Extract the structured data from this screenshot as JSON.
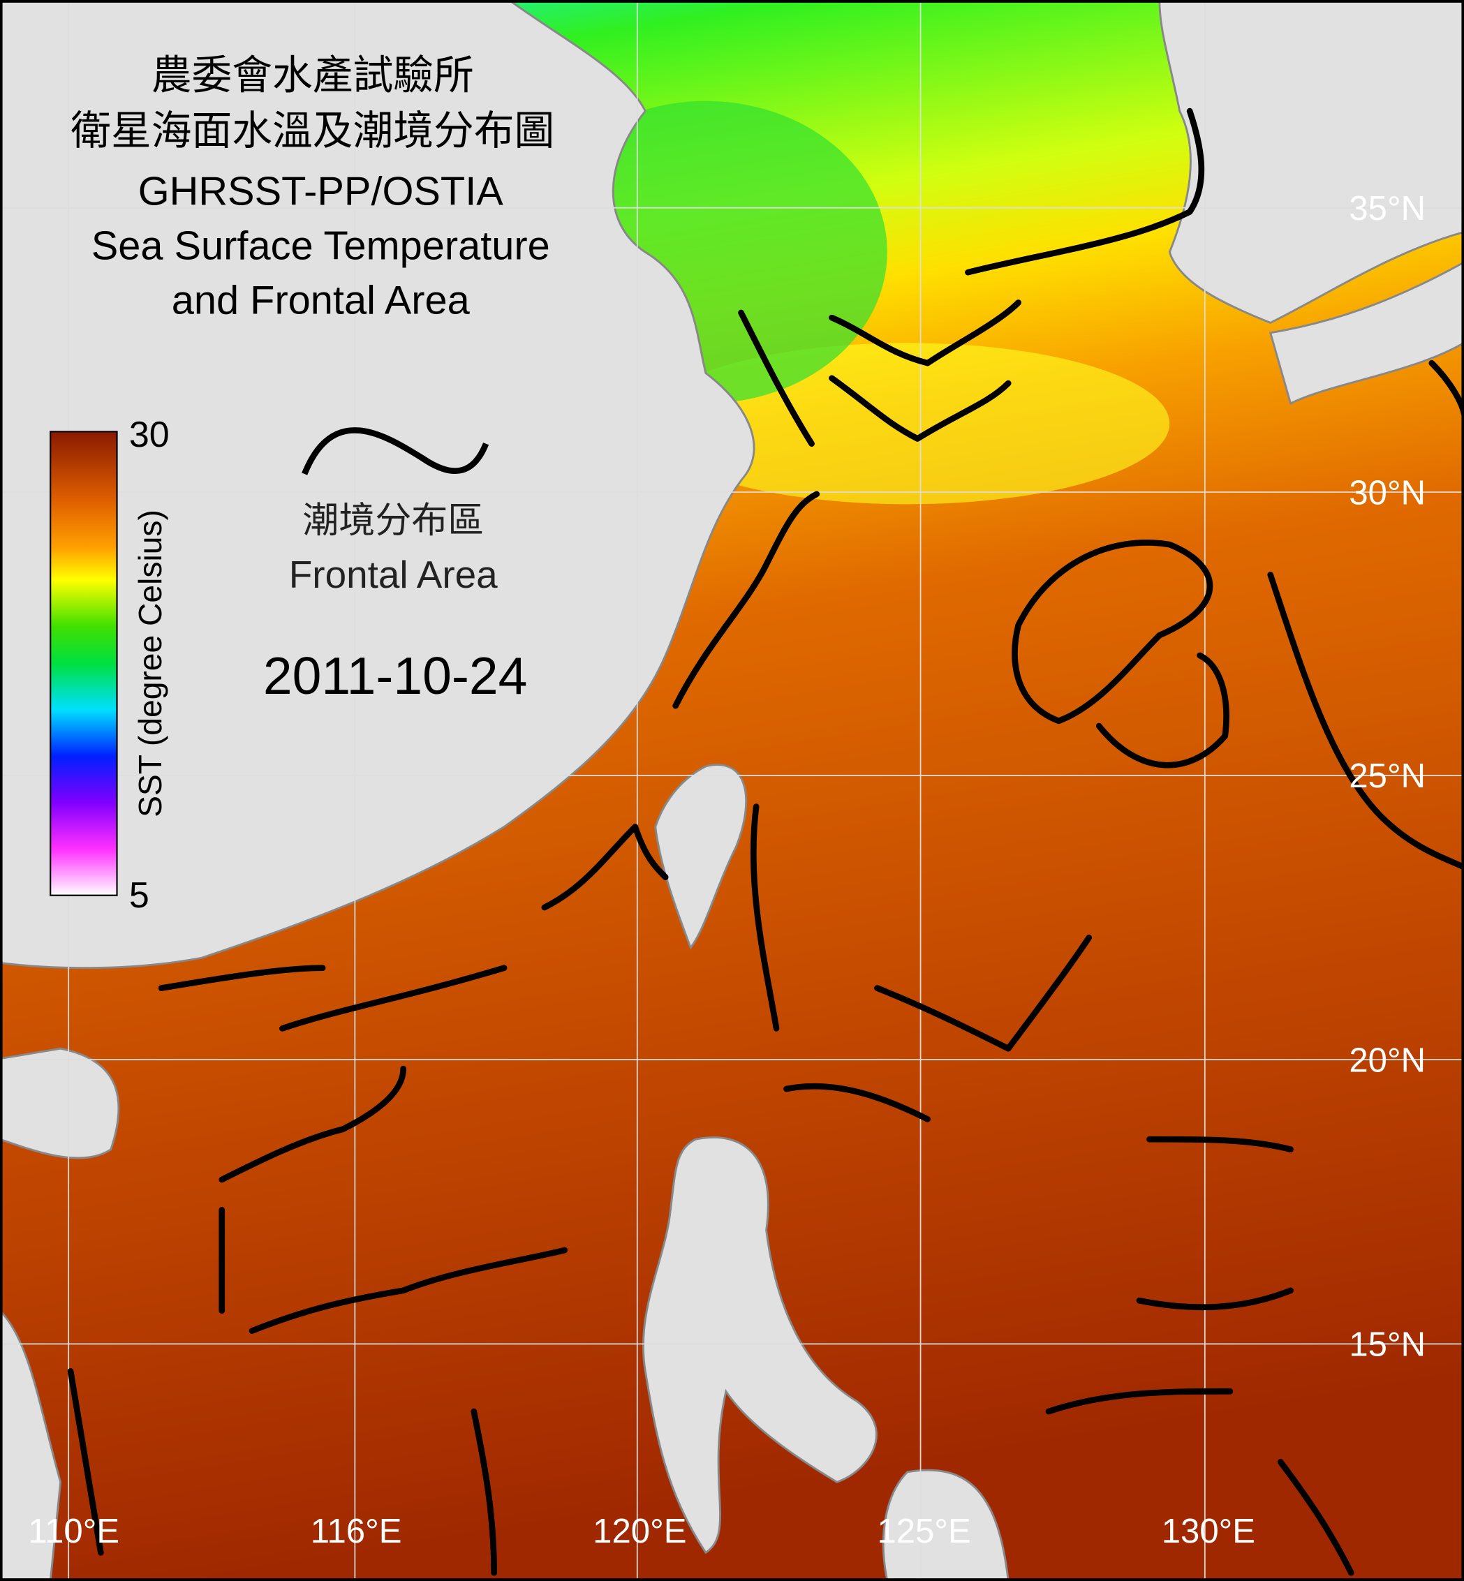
{
  "header": {
    "title_lines": [
      "農委會水產試驗所",
      "衛星海面水溫及潮境分布圖",
      "GHRSST-PP/OSTIA",
      "Sea Surface Temperature",
      "and Frontal Area"
    ]
  },
  "colorbar": {
    "max_label": "30",
    "min_label": "5",
    "axis_label": "SST (degree Celsius)"
  },
  "legend": {
    "label_zh": "潮境分布區",
    "label_en": "Frontal Area"
  },
  "date": "2011-10-24",
  "latitude_labels": [
    "35°N",
    "30°N",
    "25°N",
    "20°N",
    "15°N"
  ],
  "longitude_labels": [
    "110°E",
    "116°E",
    "120°E",
    "125°E",
    "130°E"
  ]
}
